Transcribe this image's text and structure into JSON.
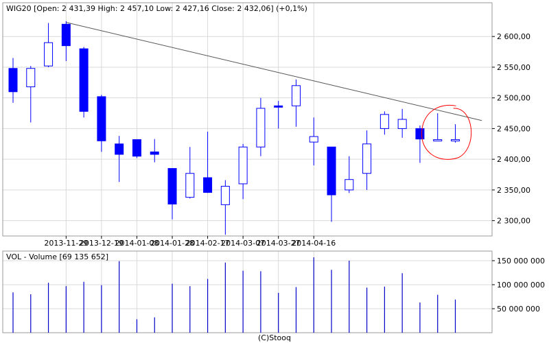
{
  "chart_data": {
    "type": "candlestick",
    "price_panel": {
      "header": "WIG20 [Open: 2 431,39  High: 2 457,10  Low: 2 427,16  Close: 2 432,06] (+0,1%)",
      "ylim": [
        2275,
        2655
      ],
      "y_ticks": [
        {
          "value": 2300,
          "label": "2 300,00"
        },
        {
          "value": 2350,
          "label": "2 350,00"
        },
        {
          "value": 2400,
          "label": "2 400,00"
        },
        {
          "value": 2450,
          "label": "2 450,00"
        },
        {
          "value": 2500,
          "label": "2 500,00"
        },
        {
          "value": 2550,
          "label": "2 550,00"
        },
        {
          "value": 2600,
          "label": "2 600,00"
        }
      ],
      "candles": [
        {
          "open": 2548,
          "high": 2565,
          "low": 2492,
          "close": 2510
        },
        {
          "open": 2518,
          "high": 2552,
          "low": 2460,
          "close": 2548
        },
        {
          "open": 2552,
          "high": 2622,
          "low": 2550,
          "close": 2590
        },
        {
          "open": 2620,
          "high": 2625,
          "low": 2560,
          "close": 2585
        },
        {
          "open": 2580,
          "high": 2583,
          "low": 2468,
          "close": 2478
        },
        {
          "open": 2502,
          "high": 2505,
          "low": 2412,
          "close": 2430
        },
        {
          "open": 2425,
          "high": 2438,
          "low": 2363,
          "close": 2408
        },
        {
          "open": 2432,
          "high": 2432,
          "low": 2402,
          "close": 2405
        },
        {
          "open": 2412,
          "high": 2433,
          "low": 2395,
          "close": 2408
        },
        {
          "open": 2385,
          "high": 2385,
          "low": 2302,
          "close": 2327
        },
        {
          "open": 2338,
          "high": 2420,
          "low": 2336,
          "close": 2377
        },
        {
          "open": 2370,
          "high": 2445,
          "low": 2345,
          "close": 2346
        },
        {
          "open": 2326,
          "high": 2366,
          "low": 2277,
          "close": 2356
        },
        {
          "open": 2360,
          "high": 2425,
          "low": 2335,
          "close": 2420
        },
        {
          "open": 2420,
          "high": 2500,
          "low": 2405,
          "close": 2483
        },
        {
          "open": 2487,
          "high": 2495,
          "low": 2450,
          "close": 2485
        },
        {
          "open": 2487,
          "high": 2530,
          "low": 2453,
          "close": 2520
        },
        {
          "open": 2428,
          "high": 2468,
          "low": 2390,
          "close": 2437
        },
        {
          "open": 2420,
          "high": 2420,
          "low": 2298,
          "close": 2342
        },
        {
          "open": 2350,
          "high": 2405,
          "low": 2345,
          "close": 2367
        },
        {
          "open": 2377,
          "high": 2447,
          "low": 2350,
          "close": 2425
        },
        {
          "open": 2450,
          "high": 2478,
          "low": 2440,
          "close": 2473
        },
        {
          "open": 2450,
          "high": 2482,
          "low": 2435,
          "close": 2465
        },
        {
          "open": 2450,
          "high": 2455,
          "low": 2394,
          "close": 2433
        },
        {
          "open": 2432,
          "high": 2475,
          "low": 2430,
          "close": 2432
        },
        {
          "open": 2431.39,
          "high": 2457.1,
          "low": 2427.16,
          "close": 2432.06
        }
      ],
      "trendline": {
        "from": {
          "index": 3,
          "value": 2623
        },
        "to": {
          "index": 26.5,
          "value": 2463
        }
      },
      "annotation": "red circle around the last two candles"
    },
    "volume_panel": {
      "header": "VOL - Volume [69 135 652]",
      "ylim": [
        0,
        170000000
      ],
      "y_ticks": [
        {
          "value": 50000000,
          "label": "50 000 000"
        },
        {
          "value": 100000000,
          "label": "100 000 000"
        },
        {
          "value": 150000000,
          "label": "150 000 000"
        }
      ],
      "values": [
        84000000,
        80000000,
        104000000,
        97000000,
        106000000,
        99000000,
        149000000,
        28000000,
        32000000,
        102000000,
        97000000,
        112000000,
        146000000,
        129000000,
        128000000,
        83000000,
        95000000,
        157000000,
        131000000,
        150000000,
        94000000,
        96000000,
        124000000,
        63000000,
        79000000,
        69135652
      ]
    },
    "x_ticks": [
      {
        "index": 3,
        "label": "2013-11-29"
      },
      {
        "index": 5,
        "label": "2013-12-19"
      },
      {
        "index": 7,
        "label": "2014-01-08"
      },
      {
        "index": 9,
        "label": "2014-01-28"
      },
      {
        "index": 11,
        "label": "2014-02-17"
      },
      {
        "index": 13,
        "label": "2014-03-07"
      },
      {
        "index": 15,
        "label": "2014-03-27"
      },
      {
        "index": 17,
        "label": "2014-04-16"
      }
    ],
    "colors": {
      "up_fill": "#ffffff",
      "down_fill": "#0000ff",
      "outline": "#0000ff",
      "volume": "#0000cc",
      "trendline": "#555555",
      "annotation": "#ff0000",
      "grid": "#d9d9d9"
    },
    "grid": true
  },
  "footer": "(C)Stooq"
}
